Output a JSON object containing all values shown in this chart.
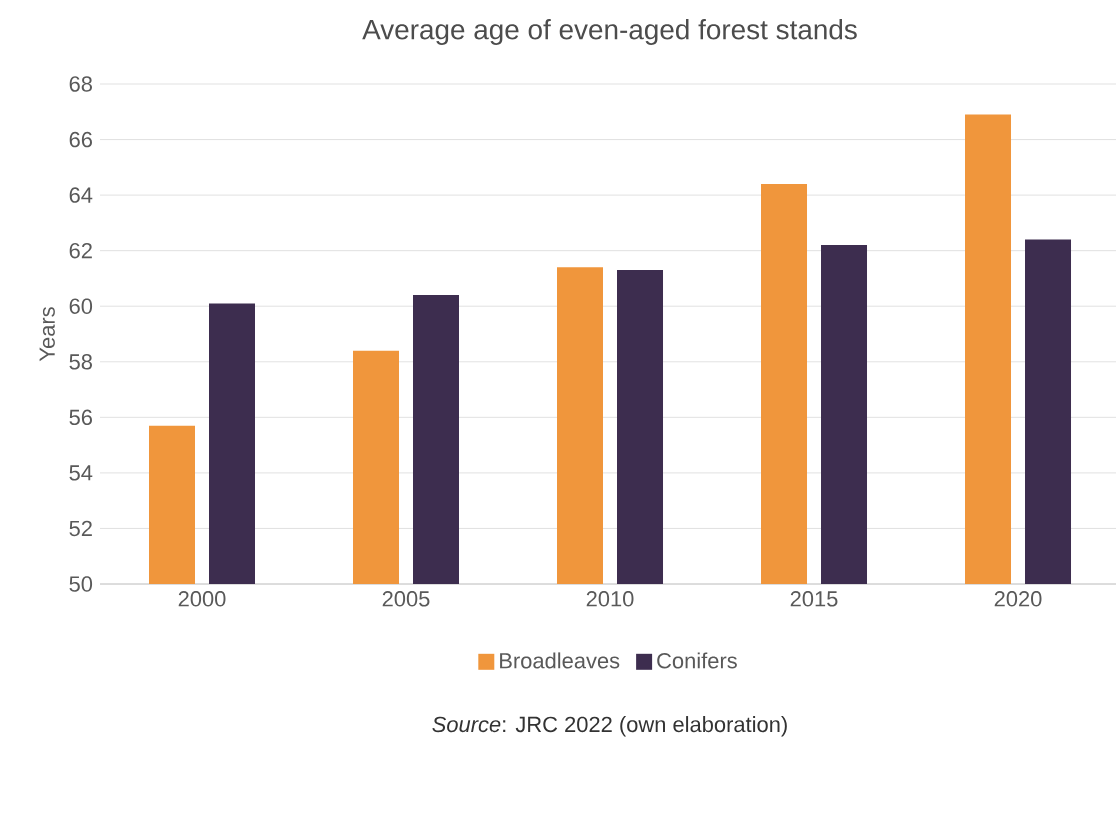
{
  "chart_data": {
    "type": "bar",
    "title": "Average age of even-aged forest stands",
    "ylabel": "Years",
    "categories": [
      "2000",
      "2005",
      "2010",
      "2015",
      "2020"
    ],
    "series": [
      {
        "name": "Broadleaves",
        "color": "#f0963c",
        "values": [
          55.7,
          58.4,
          61.4,
          64.4,
          66.9
        ]
      },
      {
        "name": "Conifers",
        "color": "#3d2d4f",
        "values": [
          60.1,
          60.4,
          61.3,
          62.2,
          62.4
        ]
      }
    ],
    "ylim": [
      50,
      68
    ],
    "yticks": [
      50,
      52,
      54,
      56,
      58,
      60,
      62,
      64,
      66,
      68
    ],
    "grid": "y",
    "legend": "bottom",
    "annotations": [
      "*Source*: JRC 2022 (own elaboration)"
    ]
  }
}
